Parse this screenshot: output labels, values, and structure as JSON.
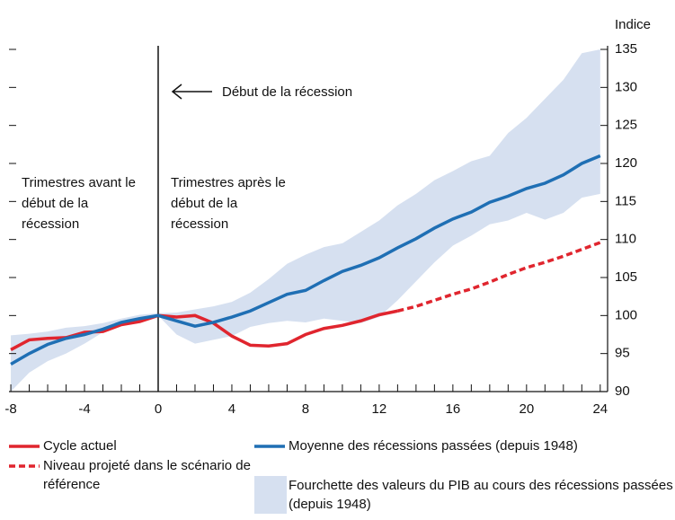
{
  "chart_data": {
    "type": "line",
    "y_label": "Indice",
    "annotations": [
      "Début de la récession",
      "Trimestres avant le début de la récession",
      "Trimestres après le début de la récession"
    ],
    "x": [
      -8,
      -7,
      -6,
      -5,
      -4,
      -3,
      -2,
      -1,
      0,
      1,
      2,
      3,
      4,
      5,
      6,
      7,
      8,
      9,
      10,
      11,
      12,
      13,
      14,
      15,
      16,
      17,
      18,
      19,
      20,
      21,
      22,
      23,
      24
    ],
    "xlim": [
      -8.1,
      24.4
    ],
    "xticks": [
      -8,
      -4,
      0,
      4,
      8,
      12,
      16,
      20,
      24
    ],
    "ylim": [
      90,
      135
    ],
    "yticks": [
      90,
      95,
      100,
      105,
      110,
      115,
      120,
      125,
      130,
      135
    ],
    "series": [
      {
        "name": "Cycle actuel",
        "color": "#e0252e",
        "dash": false,
        "values": [
          95.5,
          96.8,
          97.0,
          97.1,
          97.8,
          97.9,
          98.8,
          99.2,
          100,
          99.8,
          100.0,
          99.0,
          97.3,
          96.1,
          96.0,
          96.3,
          97.5,
          98.3,
          98.7,
          99.3,
          100.1,
          100.6,
          null,
          null,
          null,
          null,
          null,
          null,
          null,
          null,
          null,
          null,
          null
        ]
      },
      {
        "name": "Niveau projeté dans le scénario de référence",
        "color": "#e0252e",
        "dash": true,
        "values": [
          null,
          null,
          null,
          null,
          null,
          null,
          null,
          null,
          null,
          null,
          null,
          null,
          null,
          null,
          null,
          null,
          null,
          null,
          null,
          null,
          null,
          100.6,
          101.2,
          102.0,
          102.8,
          103.5,
          104.4,
          105.4,
          106.3,
          107.0,
          107.8,
          108.7,
          109.6
        ]
      },
      {
        "name": "Moyenne des récessions passées (depuis 1948)",
        "color": "#1f6fb4",
        "dash": false,
        "values": [
          93.6,
          95.0,
          96.2,
          97.0,
          97.5,
          98.2,
          99.1,
          99.6,
          100,
          99.3,
          98.6,
          99.1,
          99.8,
          100.6,
          101.7,
          102.8,
          103.3,
          104.6,
          105.8,
          106.6,
          107.6,
          108.9,
          110.1,
          111.5,
          112.7,
          113.6,
          114.9,
          115.7,
          116.7,
          117.4,
          118.5,
          120.0,
          121.0
        ]
      },
      {
        "name": "Fourchette des valeurs du PIB au cours des récessions passées (depuis 1948)",
        "color": "#d6e0f0",
        "upper": [
          97.4,
          97.6,
          97.9,
          98.4,
          98.6,
          99.0,
          99.6,
          100.1,
          100.3,
          100.4,
          100.8,
          101.2,
          101.8,
          103.0,
          104.8,
          106.8,
          108.0,
          109.0,
          109.5,
          111.0,
          112.5,
          114.5,
          116.0,
          117.8,
          119.0,
          120.3,
          121.0,
          124.0,
          126.0,
          128.5,
          131.0,
          134.5,
          135.0
        ],
        "lower": [
          90.0,
          92.5,
          94.0,
          95.0,
          96.3,
          97.8,
          99.0,
          99.6,
          100,
          97.5,
          96.3,
          96.8,
          97.3,
          98.5,
          99.0,
          99.3,
          99.1,
          99.6,
          99.3,
          99.0,
          99.8,
          102.0,
          104.5,
          107.0,
          109.2,
          110.5,
          112.0,
          112.5,
          113.5,
          112.6,
          113.5,
          115.5,
          116.0
        ]
      }
    ]
  }
}
